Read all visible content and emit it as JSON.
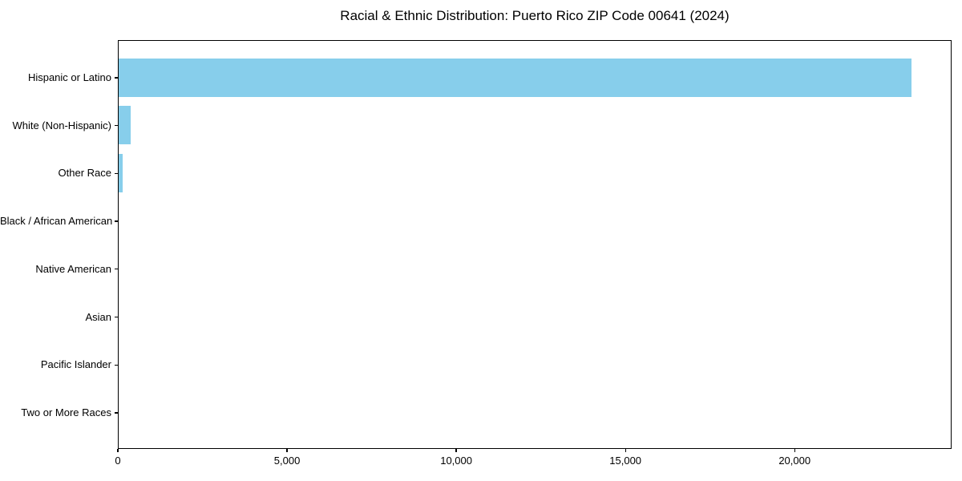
{
  "title": "Racial & Ethnic Distribution: Puerto Rico ZIP Code 00641 (2024)",
  "colors": {
    "bar": "#87CEEB",
    "background": "#FFFFFF",
    "axis": "#000000",
    "text": "#000000"
  },
  "chart_data": {
    "type": "bar",
    "orientation": "horizontal",
    "title": "Racial & Ethnic Distribution: Puerto Rico ZIP Code 00641 (2024)",
    "categories": [
      "Hispanic or Latino",
      "White (Non-Hispanic)",
      "Other Race",
      "Black / African American",
      "Native American",
      "Asian",
      "Pacific Islander",
      "Two or More Races"
    ],
    "values": [
      23465,
      355,
      110,
      0,
      0,
      0,
      0,
      0
    ],
    "bar_color": "#87CEEB",
    "xlabel": "",
    "ylabel": "",
    "xlim": [
      0,
      24638
    ],
    "x_ticks": [
      0,
      5000,
      10000,
      15000,
      20000
    ],
    "x_tick_labels": [
      "0",
      "5,000",
      "10,000",
      "15,000",
      "20,000"
    ],
    "grid": false,
    "legend": false,
    "category_order": "top-to-bottom"
  }
}
